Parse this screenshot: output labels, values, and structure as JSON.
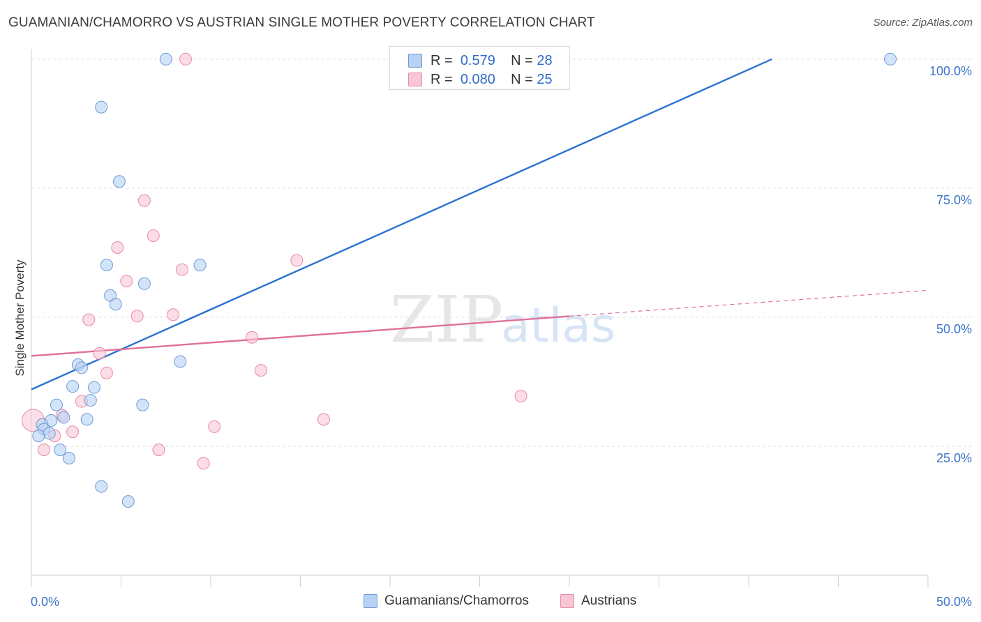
{
  "chart_data": {
    "type": "scatter",
    "title": "GUAMANIAN/CHAMORRO VS AUSTRIAN SINGLE MOTHER POVERTY CORRELATION CHART",
    "source": "Source: ZipAtlas.com",
    "ylabel": "Single Mother Poverty",
    "xlim": [
      0,
      50
    ],
    "ylim": [
      0,
      102
    ],
    "x_ticks": [
      "0.0%",
      "50.0%"
    ],
    "y_ticks": [
      {
        "value": 25,
        "label": "25.0%"
      },
      {
        "value": 50,
        "label": "50.0%"
      },
      {
        "value": 75,
        "label": "75.0%"
      },
      {
        "value": 100,
        "label": "100.0%"
      }
    ],
    "grid": true,
    "watermark": {
      "zip": "ZIP",
      "atlas": "atlas"
    },
    "legend": [
      {
        "r_label": "R =",
        "r_value": "0.579",
        "n_label": "N =",
        "n_value": "28"
      },
      {
        "r_label": "R =",
        "r_value": "0.080",
        "n_label": "N =",
        "n_value": "25"
      }
    ],
    "series": [
      {
        "name": "Guamanians/Chamorros",
        "fill": "#b8d2f4",
        "stroke": "#6b9bd8",
        "line_color": "#2a72d0",
        "trend": {
          "x0": 0,
          "y0": 36.0,
          "x1": 41.3,
          "y1": 100.0
        },
        "points": [
          [
            7.5,
            100.0
          ],
          [
            3.9,
            90.7
          ],
          [
            4.9,
            76.3
          ],
          [
            4.2,
            60.1
          ],
          [
            9.4,
            60.1
          ],
          [
            6.3,
            56.5
          ],
          [
            4.4,
            54.2
          ],
          [
            4.7,
            52.5
          ],
          [
            2.6,
            40.8
          ],
          [
            2.8,
            40.2
          ],
          [
            8.3,
            41.4
          ],
          [
            2.3,
            36.6
          ],
          [
            3.5,
            36.4
          ],
          [
            3.3,
            33.9
          ],
          [
            6.2,
            33.0
          ],
          [
            1.4,
            33.0
          ],
          [
            1.8,
            30.6
          ],
          [
            1.1,
            30.0
          ],
          [
            3.1,
            30.2
          ],
          [
            0.6,
            29.2
          ],
          [
            0.7,
            28.3
          ],
          [
            1.0,
            27.5
          ],
          [
            0.4,
            27.0
          ],
          [
            1.6,
            24.3
          ],
          [
            2.1,
            22.7
          ],
          [
            3.9,
            17.2
          ],
          [
            5.4,
            14.3
          ],
          [
            47.9,
            100.0
          ]
        ]
      },
      {
        "name": "Austrians",
        "fill": "#f8c6d4",
        "stroke": "#e88aa6",
        "line_color": "#e07098",
        "trend": {
          "x0": 0,
          "y0": 42.5,
          "x1": 30.0,
          "y1": 50.2
        },
        "trend_dashed_to": {
          "x": 50.0,
          "y": 55.2
        },
        "points": [
          [
            8.6,
            100.0
          ],
          [
            6.3,
            72.6
          ],
          [
            6.8,
            65.8
          ],
          [
            4.8,
            63.5
          ],
          [
            14.8,
            61.0
          ],
          [
            8.4,
            59.2
          ],
          [
            5.3,
            57.0
          ],
          [
            3.2,
            49.5
          ],
          [
            5.9,
            50.2
          ],
          [
            7.9,
            50.5
          ],
          [
            12.3,
            46.1
          ],
          [
            3.8,
            43.0
          ],
          [
            4.2,
            39.2
          ],
          [
            12.8,
            39.7
          ],
          [
            27.3,
            34.7
          ],
          [
            2.8,
            33.7
          ],
          [
            0.1,
            30.0
          ],
          [
            1.7,
            31.0
          ],
          [
            16.3,
            30.2
          ],
          [
            10.2,
            28.8
          ],
          [
            2.3,
            27.8
          ],
          [
            1.3,
            27.0
          ],
          [
            0.7,
            24.3
          ],
          [
            7.1,
            24.3
          ],
          [
            9.6,
            21.7
          ]
        ],
        "large_point_index": 16
      }
    ]
  },
  "bottom_legend": [
    "Guamanians/Chamorros",
    "Austrians"
  ]
}
